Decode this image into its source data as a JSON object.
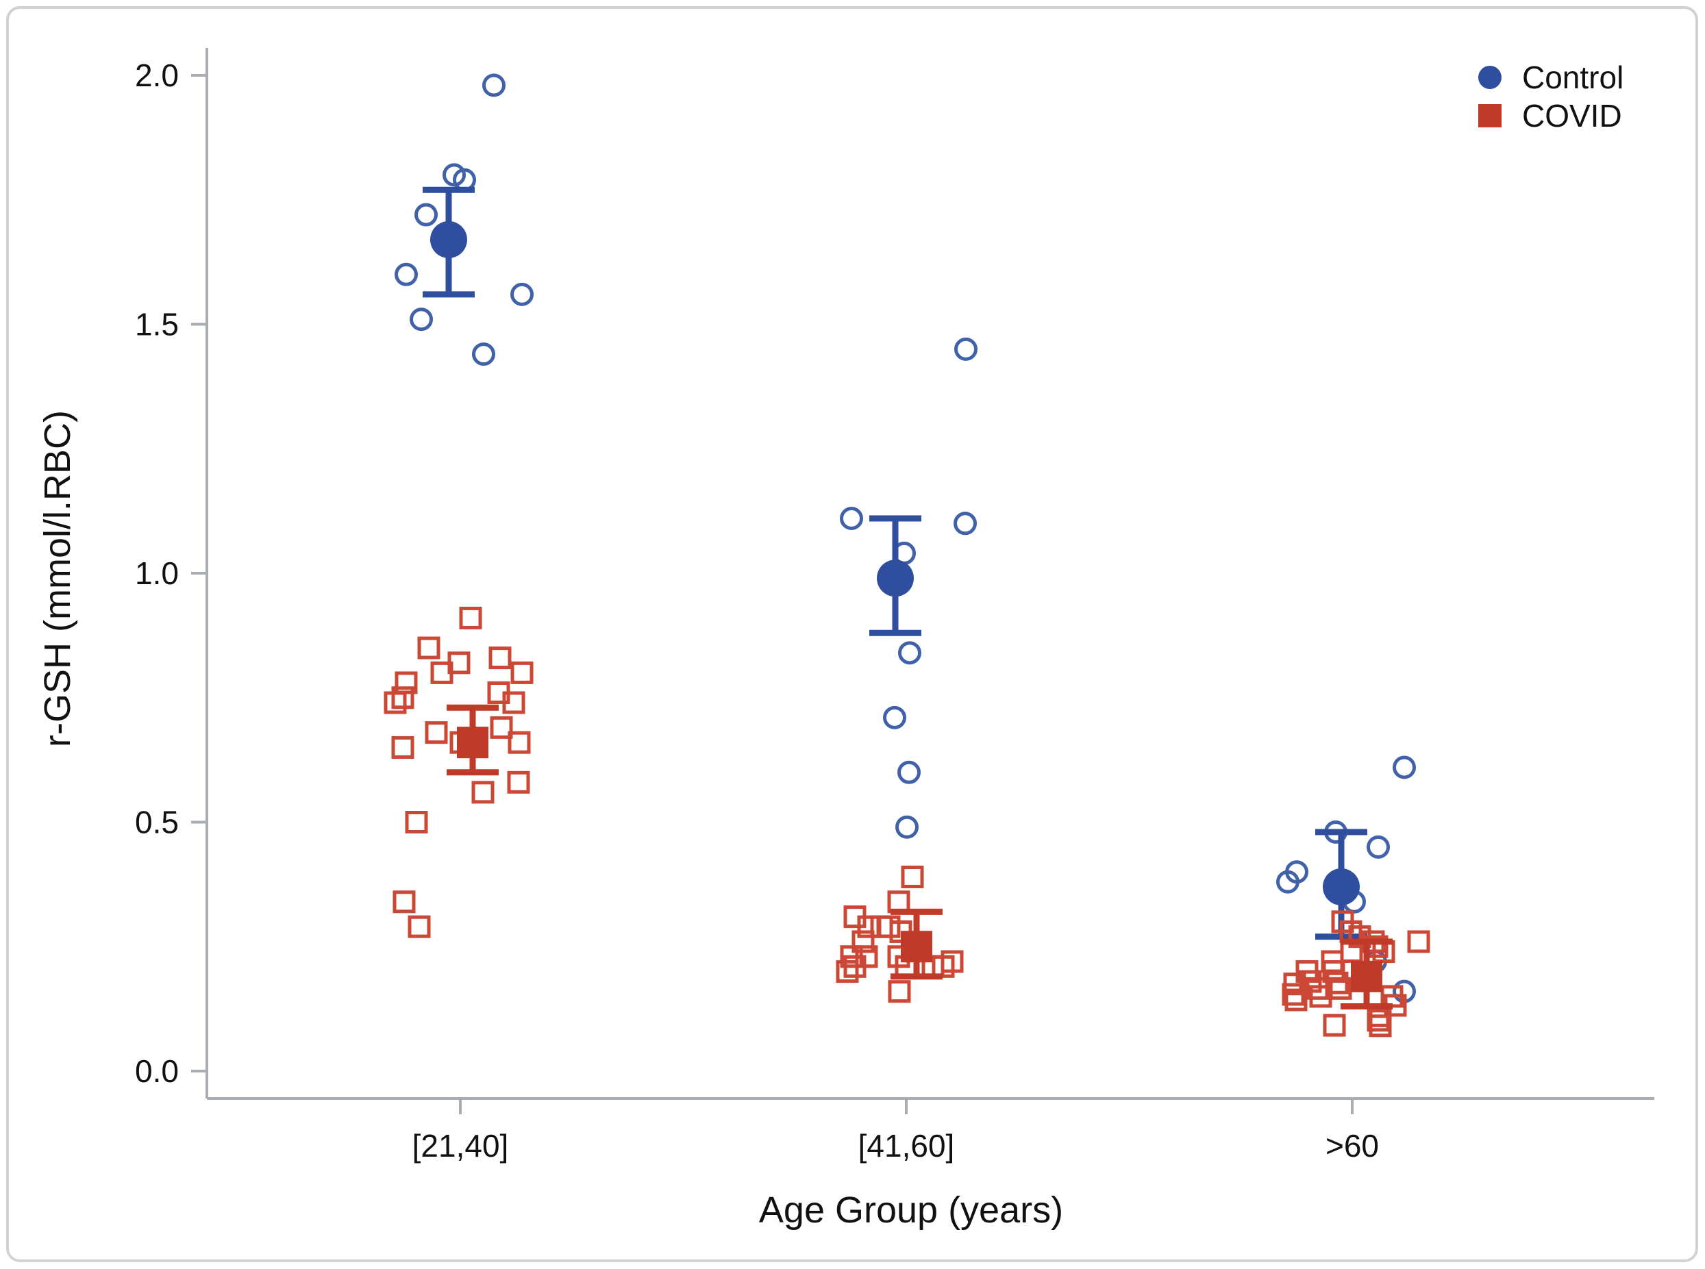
{
  "figure": {
    "border_color": "#d2d2d2",
    "background": "#ffffff",
    "axis_color": "#a9acb1"
  },
  "chart_data": {
    "type": "scatter",
    "title": "",
    "xlabel": "Age Group (years)",
    "ylabel": "r-GSH (mmol/l.RBC)",
    "categories": [
      "[21,40]",
      "[41,60]",
      ">60"
    ],
    "ylim": [
      0.0,
      2.05
    ],
    "yticks": [
      0.0,
      0.5,
      1.0,
      1.5,
      2.0
    ],
    "grid": false,
    "legend_position": "top-right",
    "legend": [
      {
        "label": "Control",
        "marker": "circle",
        "color": "#2f4e9d"
      },
      {
        "label": "COVID",
        "marker": "square",
        "color": "#bf3a28"
      }
    ],
    "series": [
      {
        "name": "Control",
        "marker": "circle",
        "fill": "#2f4e9d",
        "stroke": "#4162a8",
        "groups": [
          {
            "category": "[21,40]",
            "mean": 1.67,
            "ci_low": 1.56,
            "ci_high": 1.77,
            "mean_dx": -17,
            "points": [
              {
                "dx": 49,
                "y": 1.98
              },
              {
                "dx": -9,
                "y": 1.8
              },
              {
                "dx": 6,
                "y": 1.79
              },
              {
                "dx": -50,
                "y": 1.72
              },
              {
                "dx": -79,
                "y": 1.6
              },
              {
                "dx": 90,
                "y": 1.56
              },
              {
                "dx": -57,
                "y": 1.51
              },
              {
                "dx": 34,
                "y": 1.44
              }
            ]
          },
          {
            "category": "[41,60]",
            "mean": 0.99,
            "ci_low": 0.88,
            "ci_high": 1.11,
            "mean_dx": -16,
            "points": [
              {
                "dx": 87,
                "y": 1.45
              },
              {
                "dx": -80,
                "y": 1.11
              },
              {
                "dx": 86,
                "y": 1.1
              },
              {
                "dx": -3,
                "y": 1.04
              },
              {
                "dx": 5,
                "y": 0.84
              },
              {
                "dx": -17,
                "y": 0.71
              },
              {
                "dx": 4,
                "y": 0.6
              },
              {
                "dx": 1,
                "y": 0.49
              }
            ]
          },
          {
            "category": ">60",
            "mean": 0.37,
            "ci_low": 0.27,
            "ci_high": 0.48,
            "mean_dx": -16,
            "points": [
              {
                "dx": 76,
                "y": 0.61
              },
              {
                "dx": -24,
                "y": 0.48
              },
              {
                "dx": 38,
                "y": 0.45
              },
              {
                "dx": -81,
                "y": 0.4
              },
              {
                "dx": -94,
                "y": 0.38
              },
              {
                "dx": 3,
                "y": 0.34
              },
              {
                "dx": 34,
                "y": 0.22
              },
              {
                "dx": 76,
                "y": 0.16
              }
            ]
          }
        ]
      },
      {
        "name": "COVID",
        "marker": "square",
        "fill": "#bf3a28",
        "stroke": "#cb4736",
        "groups": [
          {
            "category": "[21,40]",
            "mean": 0.66,
            "ci_low": 0.6,
            "ci_high": 0.73,
            "mean_dx": 18,
            "points": [
              {
                "dx": 15,
                "y": 0.91
              },
              {
                "dx": -46,
                "y": 0.85
              },
              {
                "dx": 58,
                "y": 0.83
              },
              {
                "dx": -2,
                "y": 0.82
              },
              {
                "dx": -27,
                "y": 0.8
              },
              {
                "dx": 90,
                "y": 0.8
              },
              {
                "dx": -79,
                "y": 0.78
              },
              {
                "dx": 56,
                "y": 0.76
              },
              {
                "dx": -84,
                "y": 0.75
              },
              {
                "dx": -95,
                "y": 0.74
              },
              {
                "dx": 78,
                "y": 0.74
              },
              {
                "dx": 60,
                "y": 0.69
              },
              {
                "dx": -35,
                "y": 0.68
              },
              {
                "dx": 1,
                "y": 0.66
              },
              {
                "dx": 86,
                "y": 0.66
              },
              {
                "dx": -84,
                "y": 0.65
              },
              {
                "dx": 85,
                "y": 0.58
              },
              {
                "dx": 33,
                "y": 0.56
              },
              {
                "dx": -64,
                "y": 0.5
              },
              {
                "dx": -82,
                "y": 0.34
              },
              {
                "dx": -60,
                "y": 0.29
              }
            ]
          },
          {
            "category": "[41,60]",
            "mean": 0.25,
            "ci_low": 0.19,
            "ci_high": 0.32,
            "mean_dx": 15,
            "points": [
              {
                "dx": 9,
                "y": 0.39
              },
              {
                "dx": -11,
                "y": 0.34
              },
              {
                "dx": -75,
                "y": 0.31
              },
              {
                "dx": -55,
                "y": 0.29
              },
              {
                "dx": -36,
                "y": 0.29
              },
              {
                "dx": -25,
                "y": 0.29
              },
              {
                "dx": -8,
                "y": 0.28
              },
              {
                "dx": -63,
                "y": 0.26
              },
              {
                "dx": -58,
                "y": 0.23
              },
              {
                "dx": -80,
                "y": 0.23
              },
              {
                "dx": -11,
                "y": 0.23
              },
              {
                "dx": -75,
                "y": 0.21
              },
              {
                "dx": -86,
                "y": 0.2
              },
              {
                "dx": 0,
                "y": 0.21
              },
              {
                "dx": 39,
                "y": 0.21
              },
              {
                "dx": 54,
                "y": 0.21
              },
              {
                "dx": 67,
                "y": 0.22
              },
              {
                "dx": -10,
                "y": 0.16
              }
            ]
          },
          {
            "category": ">60",
            "mean": 0.19,
            "ci_low": 0.13,
            "ci_high": 0.26,
            "mean_dx": 21,
            "points": [
              {
                "dx": -14,
                "y": 0.3
              },
              {
                "dx": -2,
                "y": 0.28
              },
              {
                "dx": 11,
                "y": 0.27
              },
              {
                "dx": 97,
                "y": 0.26
              },
              {
                "dx": 31,
                "y": 0.26
              },
              {
                "dx": 36,
                "y": 0.25
              },
              {
                "dx": 46,
                "y": 0.24
              },
              {
                "dx": -1,
                "y": 0.24
              },
              {
                "dx": -29,
                "y": 0.22
              },
              {
                "dx": -27,
                "y": 0.2
              },
              {
                "dx": -66,
                "y": 0.2
              },
              {
                "dx": -61,
                "y": 0.18
              },
              {
                "dx": -84,
                "y": 0.175
              },
              {
                "dx": -22,
                "y": 0.177
              },
              {
                "dx": -17,
                "y": 0.166
              },
              {
                "dx": -51,
                "y": 0.166
              },
              {
                "dx": -86,
                "y": 0.154
              },
              {
                "dx": -46,
                "y": 0.15
              },
              {
                "dx": 58,
                "y": 0.15
              },
              {
                "dx": -82,
                "y": 0.143
              },
              {
                "dx": 63,
                "y": 0.132
              },
              {
                "dx": 41,
                "y": 0.111
              },
              {
                "dx": -26,
                "y": 0.092
              },
              {
                "dx": 38,
                "y": 0.102
              },
              {
                "dx": 41,
                "y": 0.091
              }
            ]
          }
        ]
      }
    ]
  }
}
